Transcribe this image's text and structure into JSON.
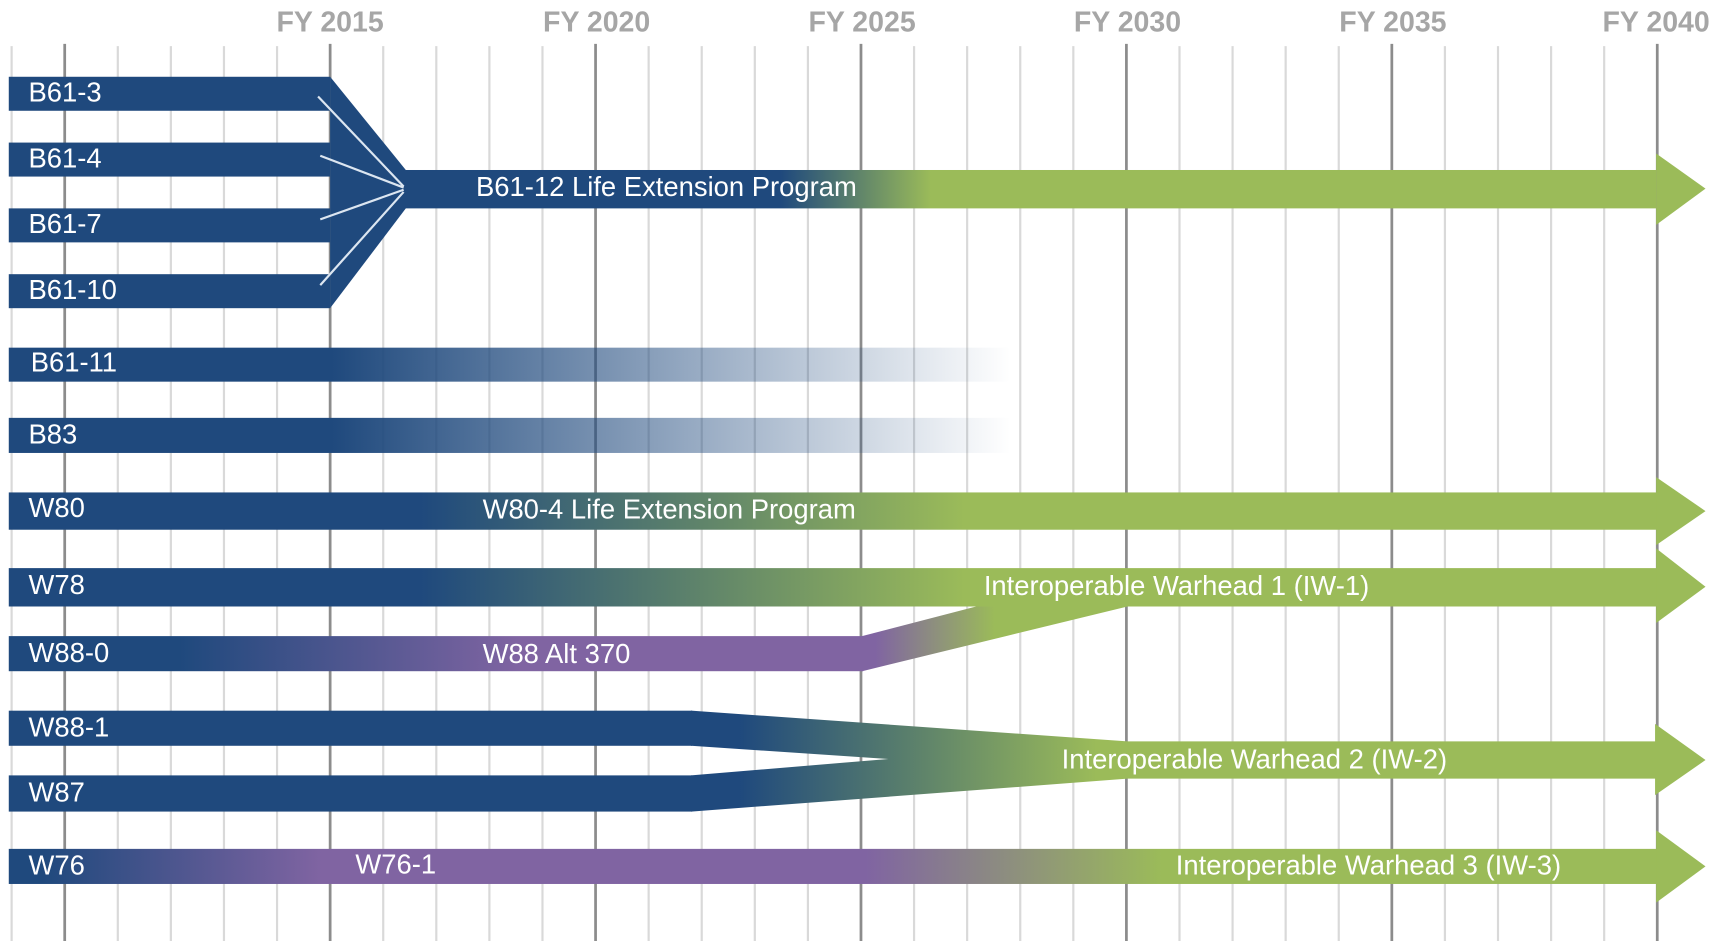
{
  "axis": {
    "ticks": [
      "FY 2015",
      "FY 2020",
      "FY 2025",
      "FY 2030",
      "FY 2035",
      "FY 2040"
    ]
  },
  "rows": [
    "B61-3",
    "B61-4",
    "B61-7",
    "B61-10",
    "B61-11",
    "B83",
    "W80",
    "W78",
    "W88-0",
    "W88-1",
    "W87",
    "W76"
  ],
  "programs": [
    "B61-12 Life Extension Program",
    "W80-4 Life Extension Program",
    "Interoperable Warhead 1 (IW-1)",
    "W88 Alt 370",
    "Interoperable Warhead 2 (IW-2)",
    "W76-1",
    "Interoperable Warhead 3 (IW-3)"
  ]
}
